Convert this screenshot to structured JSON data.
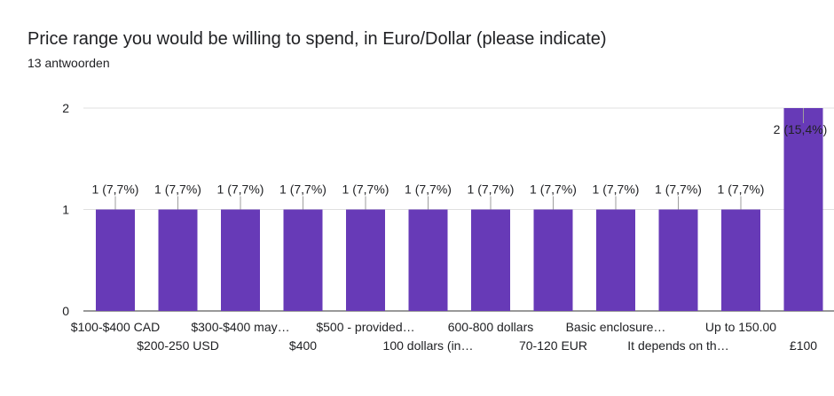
{
  "header": {
    "title": "Price range you would be willing to spend, in Euro/Dollar (please indicate)",
    "subtitle": "13 antwoorden"
  },
  "chart_data": {
    "type": "bar",
    "categories": [
      "$100-$400 CAD",
      "$200-250 USD",
      "$300-$400 may…",
      "$400",
      "$500 - provided…",
      "100 dollars (in…",
      "600-800 dollars",
      "70-120 EUR",
      "Basic enclosure…",
      "It depends on th…",
      "Up to 150.00",
      "£100"
    ],
    "values": [
      1,
      1,
      1,
      1,
      1,
      1,
      1,
      1,
      1,
      1,
      1,
      2
    ],
    "data_labels": [
      "1 (7,7%)",
      "1 (7,7%)",
      "1 (7,7%)",
      "1 (7,7%)",
      "1 (7,7%)",
      "1 (7,7%)",
      "1 (7,7%)",
      "1 (7,7%)",
      "1 (7,7%)",
      "1 (7,7%)",
      "1 (7,7%)",
      "2 (15,4%)"
    ],
    "yticks": [
      "0",
      "1",
      "2"
    ],
    "ylim": [
      0,
      2
    ],
    "bar_color": "#673ab7",
    "grid": true
  }
}
